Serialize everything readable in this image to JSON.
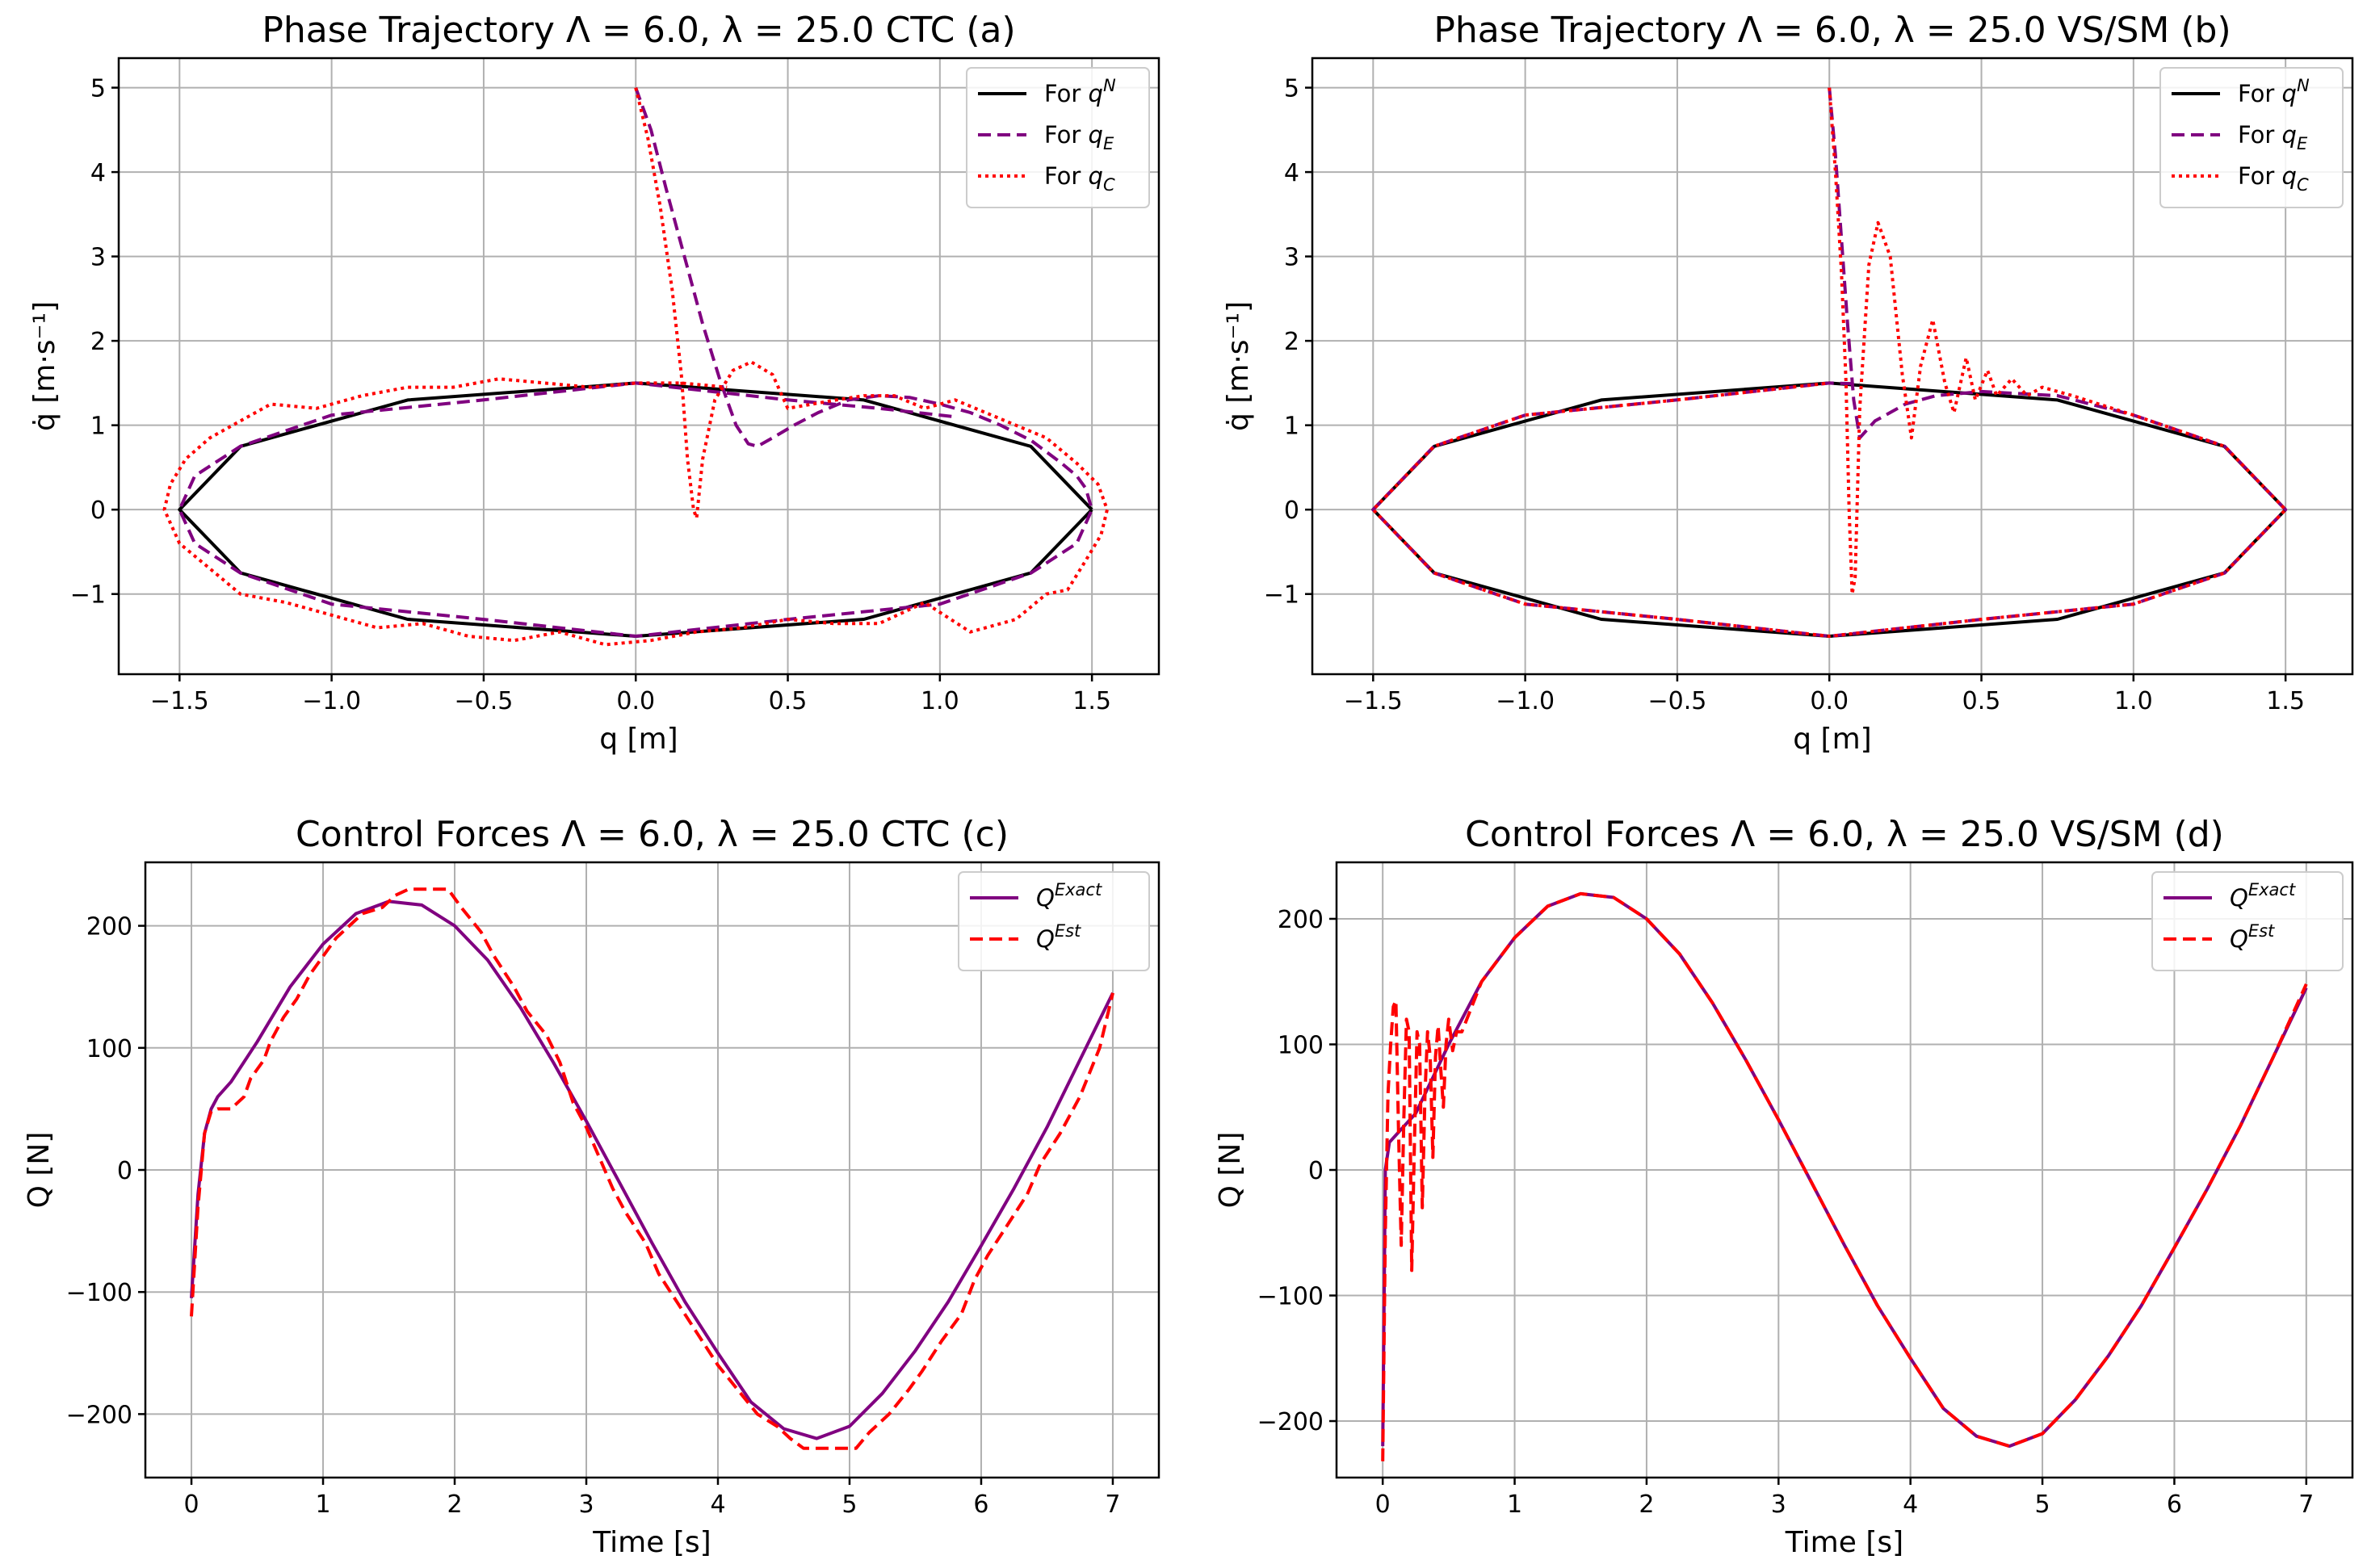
{
  "colors": {
    "nominal": "#000000",
    "estimated": "#800080",
    "commanded": "#ff0000",
    "exact_force": "#800080",
    "est_force": "#ff0000",
    "grid": "#b0b0b0"
  },
  "chart_data": [
    {
      "id": "a",
      "type": "line",
      "title": "Phase Trajectory Λ = 6.0, λ = 25.0 CTC  (a)",
      "xlabel": "q [m]",
      "ylabel": "q̇ [m·s⁻¹]",
      "xlim": [
        -1.7,
        1.72
      ],
      "ylim": [
        -1.95,
        5.35
      ],
      "xticks": [
        -1.5,
        -1.0,
        -0.5,
        0.0,
        0.5,
        1.0,
        1.5
      ],
      "xtick_labels": [
        "−1.5",
        "−1.0",
        "−0.5",
        "0.0",
        "0.5",
        "1.0",
        "1.5"
      ],
      "yticks": [
        -1,
        0,
        1,
        2,
        3,
        4,
        5
      ],
      "ytick_labels": [
        "−1",
        "0",
        "1",
        "2",
        "3",
        "4",
        "5"
      ],
      "legend_position": "top-right",
      "legend": [
        "For q^N",
        "For q_E",
        "For q_C"
      ],
      "series": [
        {
          "name": "For q^N",
          "style": "solid",
          "color": "#000000",
          "x": [
            1.5,
            1.299,
            0.75,
            0.0,
            -0.75,
            -1.299,
            -1.5,
            -1.299,
            -0.75,
            0.0,
            0.75,
            1.299,
            1.5
          ],
          "y": [
            0.0,
            0.75,
            1.299,
            1.5,
            1.299,
            0.75,
            0.0,
            -0.75,
            -1.299,
            -1.5,
            -1.299,
            -0.75,
            0.0
          ]
        },
        {
          "name": "For q_E",
          "style": "dashed",
          "color": "#800080",
          "x": [
            0.0,
            0.05,
            0.1,
            0.16,
            0.22,
            0.28,
            0.33,
            0.37,
            0.4,
            0.45,
            0.52,
            0.6,
            0.7,
            0.8,
            0.9,
            1.0,
            1.1,
            1.2,
            1.3,
            1.4,
            1.45,
            1.48,
            1.5,
            1.45,
            1.3,
            1.0,
            0.5,
            0.0,
            -0.5,
            -1.0,
            -1.3,
            -1.45,
            -1.5,
            -1.45,
            -1.3,
            -1.0,
            -0.5,
            0.0,
            0.5,
            0.8,
            1.0,
            1.05
          ],
          "y": [
            5.0,
            4.5,
            3.8,
            3.0,
            2.2,
            1.5,
            1.0,
            0.78,
            0.75,
            0.85,
            1.0,
            1.15,
            1.3,
            1.35,
            1.33,
            1.25,
            1.15,
            1.0,
            0.82,
            0.55,
            0.4,
            0.25,
            0.0,
            -0.4,
            -0.75,
            -1.12,
            -1.3,
            -1.5,
            -1.3,
            -1.12,
            -0.75,
            -0.4,
            0.0,
            0.4,
            0.75,
            1.12,
            1.3,
            1.5,
            1.3,
            1.2,
            1.12,
            1.1
          ]
        },
        {
          "name": "For q_C",
          "style": "dotted",
          "color": "#ff0000",
          "x": [
            0.0,
            0.04,
            0.08,
            0.12,
            0.15,
            0.17,
            0.19,
            0.2,
            0.22,
            0.26,
            0.32,
            0.38,
            0.45,
            0.5,
            0.58,
            0.66,
            0.75,
            0.85,
            0.95,
            1.05,
            1.15,
            1.25,
            1.35,
            1.45,
            1.52,
            1.55,
            1.53,
            1.48,
            1.42,
            1.35,
            1.25,
            1.1,
            0.95,
            0.8,
            0.65,
            0.5,
            0.35,
            0.2,
            0.05,
            -0.1,
            -0.25,
            -0.4,
            -0.55,
            -0.7,
            -0.85,
            -1.0,
            -1.15,
            -1.3,
            -1.4,
            -1.5,
            -1.55,
            -1.53,
            -1.48,
            -1.4,
            -1.3,
            -1.2,
            -1.05,
            -0.9,
            -0.75,
            -0.6,
            -0.45,
            -0.3,
            -0.15,
            0.0,
            0.15,
            0.3
          ],
          "y": [
            5.0,
            4.4,
            3.6,
            2.6,
            1.6,
            0.6,
            0.0,
            -0.1,
            0.6,
            1.3,
            1.65,
            1.75,
            1.6,
            1.2,
            1.25,
            1.3,
            1.35,
            1.35,
            1.2,
            1.3,
            1.15,
            1.0,
            0.85,
            0.55,
            0.3,
            0.0,
            -0.3,
            -0.6,
            -0.95,
            -1.0,
            -1.3,
            -1.45,
            -1.1,
            -1.35,
            -1.35,
            -1.3,
            -1.4,
            -1.45,
            -1.55,
            -1.6,
            -1.45,
            -1.55,
            -1.5,
            -1.35,
            -1.4,
            -1.25,
            -1.1,
            -1.0,
            -0.7,
            -0.4,
            0.0,
            0.3,
            0.6,
            0.85,
            1.05,
            1.25,
            1.2,
            1.35,
            1.45,
            1.45,
            1.55,
            1.5,
            1.45,
            1.5,
            1.5,
            1.45
          ]
        }
      ]
    },
    {
      "id": "b",
      "type": "line",
      "title": "Phase Trajectory Λ = 6.0, λ = 25.0 VS/SM (b)",
      "xlabel": "q [m]",
      "ylabel": "q̇ [m·s⁻¹]",
      "xlim": [
        -1.7,
        1.72
      ],
      "ylim": [
        -1.95,
        5.35
      ],
      "xticks": [
        -1.5,
        -1.0,
        -0.5,
        0.0,
        0.5,
        1.0,
        1.5
      ],
      "xtick_labels": [
        "−1.5",
        "−1.0",
        "−0.5",
        "0.0",
        "0.5",
        "1.0",
        "1.5"
      ],
      "yticks": [
        -1,
        0,
        1,
        2,
        3,
        4,
        5
      ],
      "ytick_labels": [
        "−1",
        "0",
        "1",
        "2",
        "3",
        "4",
        "5"
      ],
      "legend_position": "top-right",
      "legend": [
        "For q^N",
        "For q_E",
        "For q_C"
      ],
      "series": [
        {
          "name": "For q^N",
          "style": "solid",
          "color": "#000000",
          "x": [
            1.5,
            1.299,
            0.75,
            0.0,
            -0.75,
            -1.299,
            -1.5,
            -1.299,
            -0.75,
            0.0,
            0.75,
            1.299,
            1.5
          ],
          "y": [
            0.0,
            0.75,
            1.299,
            1.5,
            1.299,
            0.75,
            0.0,
            -0.75,
            -1.299,
            -1.5,
            -1.299,
            -0.75,
            0.0
          ]
        },
        {
          "name": "For q_E",
          "style": "dashed",
          "color": "#800080",
          "x": [
            0.0,
            0.02,
            0.04,
            0.06,
            0.08,
            0.1,
            0.15,
            0.25,
            0.35,
            0.5,
            0.75,
            1.0,
            1.3,
            1.5,
            1.3,
            1.0,
            0.5,
            0.0,
            -0.5,
            -1.0,
            -1.3,
            -1.5,
            -1.3,
            -1.0,
            -0.5,
            0.0,
            0.1
          ],
          "y": [
            5.0,
            4.2,
            3.2,
            2.2,
            1.3,
            0.85,
            1.05,
            1.25,
            1.35,
            1.4,
            1.35,
            1.12,
            0.75,
            0.0,
            -0.75,
            -1.12,
            -1.3,
            -1.5,
            -1.3,
            -1.12,
            -0.75,
            0.0,
            0.75,
            1.12,
            1.3,
            1.5,
            1.49
          ]
        },
        {
          "name": "For q_C",
          "style": "dotted",
          "color": "#ff0000",
          "x": [
            0.0,
            0.02,
            0.04,
            0.055,
            0.065,
            0.075,
            0.085,
            0.1,
            0.13,
            0.16,
            0.2,
            0.24,
            0.27,
            0.3,
            0.34,
            0.38,
            0.41,
            0.45,
            0.48,
            0.52,
            0.55,
            0.6,
            0.65,
            0.7,
            0.8,
            1.0,
            1.3,
            1.5,
            1.3,
            1.0,
            0.5,
            0.0,
            -0.5,
            -1.0,
            -1.3,
            -1.5,
            -1.3,
            -1.0,
            -0.5,
            0.0
          ],
          "y": [
            5.0,
            4.0,
            2.8,
            1.5,
            0.0,
            -1.0,
            -0.8,
            1.2,
            2.9,
            3.4,
            3.0,
            1.6,
            0.85,
            1.7,
            2.25,
            1.5,
            1.15,
            1.8,
            1.3,
            1.65,
            1.35,
            1.55,
            1.35,
            1.45,
            1.35,
            1.12,
            0.75,
            0.0,
            -0.75,
            -1.12,
            -1.3,
            -1.5,
            -1.3,
            -1.12,
            -0.75,
            0.0,
            0.75,
            1.12,
            1.3,
            1.5
          ]
        }
      ]
    },
    {
      "id": "c",
      "type": "line",
      "title": "Control Forces Λ = 6.0, λ = 25.0 CTC  (c)",
      "xlabel": "Time [s]",
      "ylabel": "Q [N]",
      "xlim": [
        -0.35,
        7.35
      ],
      "ylim": [
        -252,
        252
      ],
      "xticks": [
        0,
        1,
        2,
        3,
        4,
        5,
        6,
        7
      ],
      "xtick_labels": [
        "0",
        "1",
        "2",
        "3",
        "4",
        "5",
        "6",
        "7"
      ],
      "yticks": [
        -200,
        -100,
        0,
        100,
        200
      ],
      "ytick_labels": [
        "−200",
        "−100",
        "0",
        "100",
        "200"
      ],
      "legend_position": "top-right",
      "legend": [
        "Q^Exact",
        "Q^Est"
      ],
      "series": [
        {
          "name": "Q^Exact",
          "style": "solid",
          "color": "#800080",
          "x": [
            0.0,
            0.05,
            0.1,
            0.15,
            0.2,
            0.3,
            0.5,
            0.75,
            1.0,
            1.25,
            1.5,
            1.75,
            2.0,
            2.25,
            2.5,
            2.75,
            3.0,
            3.25,
            3.5,
            3.75,
            4.0,
            4.25,
            4.5,
            4.75,
            5.0,
            5.25,
            5.5,
            5.75,
            6.0,
            6.25,
            6.5,
            6.75,
            7.0
          ],
          "y": [
            -105,
            -20,
            30,
            50,
            60,
            72,
            105,
            150,
            185,
            210,
            220,
            217,
            200,
            172,
            133,
            88,
            40,
            -10,
            -60,
            -108,
            -150,
            -190,
            -212,
            -220,
            -210,
            -183,
            -148,
            -108,
            -62,
            -15,
            35,
            90,
            145
          ]
        },
        {
          "name": "Q^Est",
          "style": "dashed",
          "color": "#ff0000",
          "x": [
            0.0,
            0.05,
            0.1,
            0.15,
            0.2,
            0.3,
            0.35,
            0.4,
            0.45,
            0.55,
            0.6,
            0.7,
            0.8,
            0.9,
            1.0,
            1.1,
            1.2,
            1.3,
            1.45,
            1.55,
            1.65,
            1.95,
            2.05,
            2.2,
            2.3,
            2.45,
            2.55,
            2.7,
            2.8,
            2.9,
            3.0,
            3.1,
            3.2,
            3.3,
            3.45,
            3.55,
            3.7,
            3.85,
            4.0,
            4.15,
            4.3,
            4.45,
            4.55,
            4.65,
            4.75,
            5.05,
            5.15,
            5.3,
            5.45,
            5.55,
            5.7,
            5.85,
            5.95,
            6.05,
            6.2,
            6.35,
            6.45,
            6.6,
            6.75,
            6.9,
            7.0
          ],
          "y": [
            -120,
            -30,
            30,
            48,
            50,
            50,
            55,
            60,
            75,
            90,
            105,
            125,
            140,
            160,
            175,
            190,
            200,
            210,
            215,
            225,
            230,
            230,
            215,
            195,
            175,
            150,
            130,
            110,
            88,
            55,
            35,
            10,
            -15,
            -35,
            -60,
            -85,
            -110,
            -135,
            -160,
            -180,
            -200,
            -210,
            -220,
            -228,
            -228,
            -228,
            -215,
            -200,
            -180,
            -165,
            -140,
            -118,
            -90,
            -70,
            -45,
            -20,
            5,
            30,
            60,
            100,
            145
          ]
        }
      ]
    },
    {
      "id": "d",
      "type": "line",
      "title": "Control Forces Λ = 6.0, λ = 25.0 VS/SM (d)",
      "xlabel": "Time [s]",
      "ylabel": "Q [N]",
      "xlim": [
        -0.35,
        7.35
      ],
      "ylim": [
        -245,
        245
      ],
      "xticks": [
        0,
        1,
        2,
        3,
        4,
        5,
        6,
        7
      ],
      "xtick_labels": [
        "0",
        "1",
        "2",
        "3",
        "4",
        "5",
        "6",
        "7"
      ],
      "yticks": [
        -200,
        -100,
        0,
        100,
        200
      ],
      "ytick_labels": [
        "−200",
        "−100",
        "0",
        "100",
        "200"
      ],
      "legend_position": "top-right",
      "legend": [
        "Q^Exact",
        "Q^Est"
      ],
      "series": [
        {
          "name": "Q^Exact",
          "style": "solid",
          "color": "#800080",
          "x": [
            0.0,
            0.02,
            0.05,
            0.25,
            0.5,
            0.75,
            1.0,
            1.25,
            1.5,
            1.75,
            2.0,
            2.25,
            2.5,
            2.75,
            3.0,
            3.25,
            3.5,
            3.75,
            4.0,
            4.25,
            4.5,
            4.75,
            5.0,
            5.25,
            5.5,
            5.75,
            6.0,
            6.25,
            6.5,
            6.75,
            7.0
          ],
          "y": [
            -220,
            0,
            22,
            45,
            100,
            150,
            185,
            210,
            220,
            217,
            200,
            172,
            133,
            88,
            40,
            -10,
            -60,
            -108,
            -150,
            -190,
            -212,
            -220,
            -210,
            -183,
            -148,
            -108,
            -62,
            -15,
            35,
            90,
            145
          ]
        },
        {
          "name": "Q^Est",
          "style": "dashed",
          "color": "#ff0000",
          "x": [
            0.0,
            0.02,
            0.04,
            0.06,
            0.08,
            0.1,
            0.12,
            0.14,
            0.16,
            0.18,
            0.2,
            0.22,
            0.24,
            0.26,
            0.28,
            0.3,
            0.32,
            0.34,
            0.36,
            0.38,
            0.4,
            0.42,
            0.44,
            0.46,
            0.48,
            0.5,
            0.53,
            0.56,
            0.6,
            0.75,
            1.0,
            1.25,
            1.5,
            1.75,
            2.0,
            2.25,
            2.5,
            2.75,
            3.0,
            3.25,
            3.5,
            3.75,
            4.0,
            4.25,
            4.5,
            4.75,
            5.0,
            5.25,
            5.5,
            5.75,
            6.0,
            6.25,
            6.5,
            6.75,
            7.0
          ],
          "y": [
            -232,
            -50,
            60,
            100,
            130,
            135,
            30,
            -60,
            40,
            120,
            110,
            -80,
            20,
            110,
            100,
            -30,
            60,
            110,
            90,
            10,
            90,
            115,
            80,
            50,
            100,
            120,
            95,
            110,
            110,
            150,
            185,
            210,
            220,
            217,
            200,
            172,
            133,
            88,
            40,
            -10,
            -60,
            -108,
            -150,
            -190,
            -212,
            -220,
            -210,
            -183,
            -148,
            -108,
            -62,
            -15,
            35,
            90,
            148
          ]
        }
      ]
    }
  ]
}
